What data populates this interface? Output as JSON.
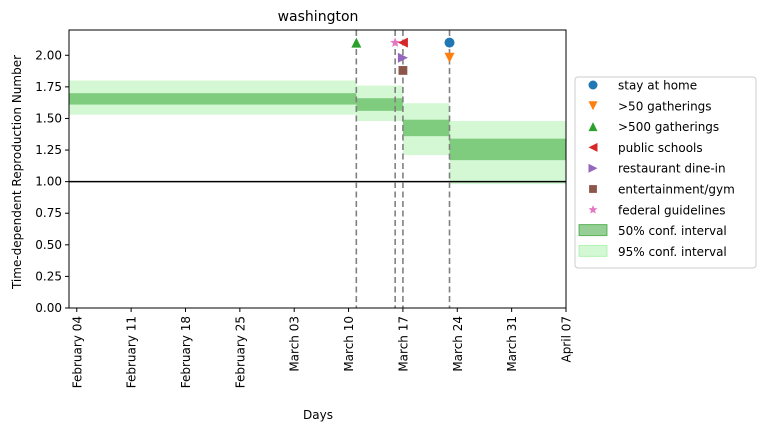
{
  "chart_data": {
    "type": "step-interval",
    "title": "washington",
    "xlabel": "Days",
    "ylabel": "Time-dependent Reproduction Number",
    "x_range": [
      "2020-02-03",
      "2020-04-07"
    ],
    "ylim": [
      0,
      2.2
    ],
    "x_ticks": [
      "February 04",
      "February 11",
      "February 18",
      "February 25",
      "March 03",
      "March 10",
      "March 17",
      "March 24",
      "March 31",
      "April 07"
    ],
    "x_tick_dates": [
      "2020-02-04",
      "2020-02-11",
      "2020-02-18",
      "2020-02-25",
      "2020-03-03",
      "2020-03-10",
      "2020-03-17",
      "2020-03-24",
      "2020-03-31",
      "2020-04-07"
    ],
    "y_ticks": [
      "0.00",
      "0.25",
      "0.50",
      "0.75",
      "1.00",
      "1.25",
      "1.50",
      "1.75",
      "2.00"
    ],
    "y_tick_values": [
      0,
      0.25,
      0.5,
      0.75,
      1.0,
      1.25,
      1.5,
      1.75,
      2.0
    ],
    "reference_line": 1.0,
    "intervention_dates": [
      "2020-03-11",
      "2020-03-16",
      "2020-03-17",
      "2020-03-23"
    ],
    "segments": [
      {
        "start": "2020-02-03",
        "end": "2020-03-11",
        "ci50": [
          1.61,
          1.7
        ],
        "ci95": [
          1.53,
          1.8
        ]
      },
      {
        "start": "2020-03-11",
        "end": "2020-03-17",
        "ci50": [
          1.56,
          1.66
        ],
        "ci95": [
          1.48,
          1.76
        ]
      },
      {
        "start": "2020-03-17",
        "end": "2020-03-23",
        "ci50": [
          1.36,
          1.49
        ],
        "ci95": [
          1.21,
          1.62
        ]
      },
      {
        "start": "2020-03-23",
        "end": "2020-04-07",
        "ci50": [
          1.17,
          1.34
        ],
        "ci95": [
          0.98,
          1.48
        ]
      }
    ],
    "events": [
      {
        "name": "stay at home",
        "date": "2020-03-23",
        "y": 2.1,
        "marker": "circle",
        "color": "#1f77b4"
      },
      {
        "name": ">50 gatherings",
        "date": "2020-03-23",
        "y": 1.98,
        "marker": "triangle-down",
        "color": "#ff7f0e"
      },
      {
        "name": ">500 gatherings",
        "date": "2020-03-11",
        "y": 2.1,
        "marker": "triangle-up",
        "color": "#2ca02c"
      },
      {
        "name": "public schools",
        "date": "2020-03-17",
        "y": 2.1,
        "marker": "triangle-left",
        "color": "#d62728"
      },
      {
        "name": "restaurant dine-in",
        "date": "2020-03-17",
        "y": 1.98,
        "marker": "triangle-right",
        "color": "#9467bd"
      },
      {
        "name": "entertainment/gym",
        "date": "2020-03-17",
        "y": 1.88,
        "marker": "square",
        "color": "#8c564b"
      },
      {
        "name": "federal guidelines",
        "date": "2020-03-16",
        "y": 2.1,
        "marker": "star",
        "color": "#e377c2"
      }
    ],
    "legend": {
      "placement": "center-right",
      "entries": [
        {
          "label": "stay at home",
          "marker": "circle",
          "color": "#1f77b4"
        },
        {
          "label": ">50 gatherings",
          "marker": "triangle-down",
          "color": "#ff7f0e"
        },
        {
          "label": ">500 gatherings",
          "marker": "triangle-up",
          "color": "#2ca02c"
        },
        {
          "label": "public schools",
          "marker": "triangle-left",
          "color": "#d62728"
        },
        {
          "label": "restaurant dine-in",
          "marker": "triangle-right",
          "color": "#9467bd"
        },
        {
          "label": "entertainment/gym",
          "marker": "square",
          "color": "#8c564b"
        },
        {
          "label": "federal guidelines",
          "marker": "star",
          "color": "#e377c2"
        },
        {
          "label": "50% conf. interval",
          "marker": "patch",
          "color": "#2ca02c"
        },
        {
          "label": "95% conf. interval",
          "marker": "patch",
          "color": "#90ee90"
        }
      ]
    },
    "colors": {
      "ci50": "#2ca02c",
      "ci95": "#90ee90",
      "vline": "#808080",
      "refline": "#000000"
    }
  }
}
